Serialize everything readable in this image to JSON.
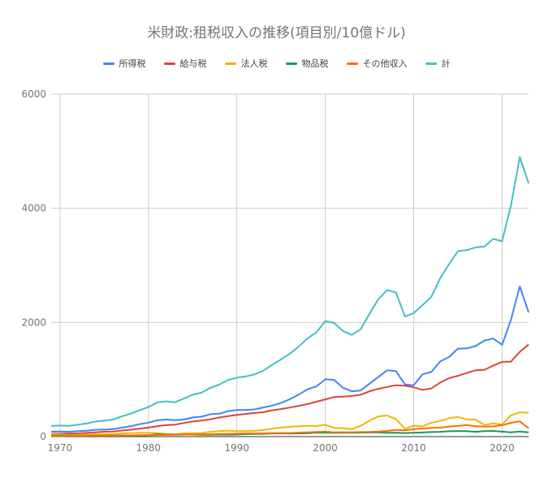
{
  "chart": {
    "title": "米財政:租税収入の推移(項目別/10億ドル)"
  },
  "chart_data": {
    "type": "line",
    "title": "米財政:租税収入の推移(項目別/10億ドル)",
    "xlabel": "",
    "ylabel": "",
    "xlim": [
      1969,
      2023
    ],
    "ylim": [
      0,
      6000
    ],
    "x_ticks": [
      "1970",
      "1980",
      "1990",
      "2000",
      "2010",
      "2020"
    ],
    "y_ticks": [
      "0",
      "2000",
      "4000",
      "6000"
    ],
    "grid": true,
    "legend_position": "top",
    "x": [
      1969,
      1970,
      1971,
      1972,
      1973,
      1974,
      1975,
      1976,
      1977,
      1978,
      1979,
      1980,
      1981,
      1982,
      1983,
      1984,
      1985,
      1986,
      1987,
      1988,
      1989,
      1990,
      1991,
      1992,
      1993,
      1994,
      1995,
      1996,
      1997,
      1998,
      1999,
      2000,
      2001,
      2002,
      2003,
      2004,
      2005,
      2006,
      2007,
      2008,
      2009,
      2010,
      2011,
      2012,
      2013,
      2014,
      2015,
      2016,
      2017,
      2018,
      2019,
      2020,
      2021,
      2022,
      2023
    ],
    "series": [
      {
        "name": "所得税",
        "color": "#4285F4",
        "values": [
          87,
          90,
          86,
          95,
          103,
          119,
          122,
          131,
          157,
          181,
          218,
          244,
          286,
          298,
          289,
          298,
          335,
          349,
          393,
          401,
          446,
          467,
          468,
          476,
          510,
          543,
          590,
          656,
          737,
          829,
          880,
          1004,
          994,
          858,
          794,
          809,
          927,
          1044,
          1163,
          1146,
          915,
          899,
          1092,
          1132,
          1316,
          1395,
          1541,
          1546,
          1587,
          1684,
          1718,
          1609,
          2044,
          2632,
          2176
        ]
      },
      {
        "name": "給与税",
        "color": "#DB4437",
        "values": [
          45,
          49,
          53,
          57,
          66,
          76,
          86,
          90,
          106,
          121,
          138,
          158,
          183,
          201,
          209,
          239,
          265,
          283,
          303,
          334,
          359,
          380,
          396,
          414,
          428,
          461,
          484,
          509,
          539,
          572,
          612,
          653,
          694,
          701,
          713,
          733,
          794,
          838,
          870,
          900,
          891,
          865,
          819,
          845,
          947,
          1024,
          1065,
          1115,
          1162,
          1171,
          1243,
          1310,
          1314,
          1484,
          1614
        ]
      },
      {
        "name": "法人税",
        "color": "#F4B400",
        "values": [
          37,
          33,
          27,
          32,
          36,
          39,
          41,
          42,
          55,
          60,
          66,
          65,
          61,
          49,
          37,
          57,
          61,
          63,
          84,
          95,
          103,
          94,
          98,
          100,
          118,
          140,
          157,
          172,
          182,
          189,
          185,
          207,
          151,
          148,
          132,
          189,
          278,
          354,
          370,
          304,
          138,
          192,
          181,
          242,
          274,
          321,
          344,
          300,
          297,
          205,
          230,
          212,
          372,
          425,
          420
        ]
      },
      {
        "name": "物品税",
        "color": "#0F9D58",
        "values": [
          15,
          16,
          17,
          16,
          16,
          17,
          16,
          17,
          17,
          18,
          19,
          24,
          41,
          37,
          35,
          37,
          36,
          33,
          32,
          35,
          34,
          35,
          42,
          46,
          48,
          55,
          57,
          54,
          57,
          58,
          71,
          69,
          66,
          67,
          68,
          70,
          73,
          74,
          65,
          67,
          62,
          67,
          72,
          79,
          84,
          94,
          98,
          95,
          84,
          95,
          99,
          87,
          75,
          88,
          76
        ]
      },
      {
        "name": "その他収入",
        "color": "#FF6D00",
        "values": [
          11,
          12,
          14,
          14,
          15,
          17,
          18,
          19,
          20,
          22,
          24,
          26,
          28,
          33,
          30,
          35,
          37,
          40,
          42,
          45,
          49,
          51,
          57,
          56,
          57,
          61,
          62,
          63,
          70,
          74,
          81,
          87,
          76,
          77,
          74,
          79,
          82,
          90,
          100,
          118,
          109,
          131,
          141,
          154,
          157,
          176,
          187,
          202,
          180,
          174,
          178,
          202,
          240,
          268,
          146
        ]
      },
      {
        "name": "計",
        "color": "#46BDC6",
        "values": [
          187,
          193,
          187,
          207,
          231,
          263,
          279,
          298,
          355,
          402,
          463,
          517,
          599,
          618,
          601,
          666,
          734,
          769,
          854,
          910,
          991,
          1032,
          1055,
          1091,
          1154,
          1259,
          1352,
          1453,
          1579,
          1722,
          1827,
          2025,
          1991,
          1853,
          1782,
          1880,
          2153,
          2407,
          2568,
          2524,
          2105,
          2163,
          2303,
          2450,
          2775,
          3021,
          3250,
          3268,
          3316,
          3330,
          3463,
          3421,
          4047,
          4897,
          4439
        ]
      }
    ]
  }
}
